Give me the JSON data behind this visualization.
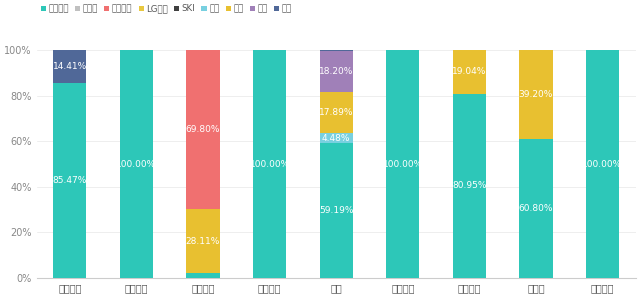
{
  "categories": [
    "北京奔驰",
    "北京现代",
    "广汽丰田",
    "华晨宝马",
    "其他",
    "上汽大众",
    "上汽通用",
    "特斯拉",
    "一汽大众"
  ],
  "series": {
    "宁德时代": [
      85.47,
      100.0,
      2.09,
      100.0,
      59.19,
      100.0,
      80.95,
      60.8,
      100.0
    ],
    "比亚迪": [
      0,
      0,
      0,
      0,
      0,
      0,
      0,
      0,
      0
    ],
    "中航锂电": [
      0,
      0,
      69.8,
      0,
      0,
      0,
      0,
      0,
      0
    ],
    "LG化学": [
      0,
      0,
      0,
      0,
      0,
      0,
      0,
      0,
      0
    ],
    "SKI": [
      0,
      0,
      0,
      0,
      0,
      0,
      0,
      0,
      0
    ],
    "力神": [
      0,
      0,
      0,
      0,
      4.48,
      0,
      0,
      0,
      0
    ],
    "孚能": [
      0,
      0,
      28.11,
      0,
      17.89,
      0,
      19.04,
      39.2,
      0
    ],
    "松下": [
      0,
      0,
      0,
      0,
      18.2,
      0,
      0,
      0,
      0
    ],
    "其他": [
      14.41,
      0,
      0,
      0,
      0.13,
      0,
      0.01,
      0,
      0
    ]
  },
  "series_order": [
    "宁德时代",
    "力神",
    "孚能",
    "松下",
    "其他",
    "中航锂电",
    "LG化学",
    "比亚迪",
    "SKI"
  ],
  "colors_map": {
    "宁德时代": "#2DC7B8",
    "比亚迪": "#B8B8B8",
    "中航锂电": "#F07070",
    "LG化学": "#E8C840",
    "SKI": "#404040",
    "力神": "#78D0E0",
    "孚能": "#E8C030",
    "松下": "#A080B8",
    "其他": "#506898"
  },
  "legend_order": [
    "宁德时代",
    "比亚迪",
    "中航锂电",
    "LG化学",
    "SKI",
    "力神",
    "孚能",
    "松下",
    "其他"
  ],
  "legend_dot_colors": {
    "宁德时代": "#2DC7B8",
    "比亚迪": "#C0C0C0",
    "中航锂电": "#F07070",
    "LG化学": "#E8C840",
    "SKI": "#404040",
    "力神": "#78D0E0",
    "孚能": "#E8C030",
    "松下": "#A080B8",
    "其他": "#506898"
  },
  "labels": {
    "宁德时代": {
      "北京奔驰": "85.47%",
      "北京现代": "100.00%",
      "华晨宝马": "100.00%",
      "其他": "59.19%",
      "上汽大众": "100.00%",
      "上汽通用": "80.95%",
      "特斯拉": "60.80%",
      "一汽大众": "100.00%"
    },
    "中航锂电": {
      "广汽丰田": "69.80%"
    },
    "力神": {
      "其他": "4.48%"
    },
    "孚能": {
      "广汽丰田": "28.11%",
      "其他": "17.89%",
      "上汽通用": "19.04%",
      "特斯拉": "39.20%"
    },
    "松下": {
      "其他": "18.20%"
    },
    "其他": {
      "北京奔驰": "14.41%"
    }
  },
  "bar_width": 0.5,
  "figsize": [
    6.4,
    2.97
  ],
  "dpi": 100,
  "background": "#FFFFFF",
  "yticks": [
    0,
    20,
    40,
    60,
    80,
    100
  ],
  "ytick_labels": [
    "0%",
    "20%",
    "40%",
    "60%",
    "80%",
    "100%"
  ]
}
